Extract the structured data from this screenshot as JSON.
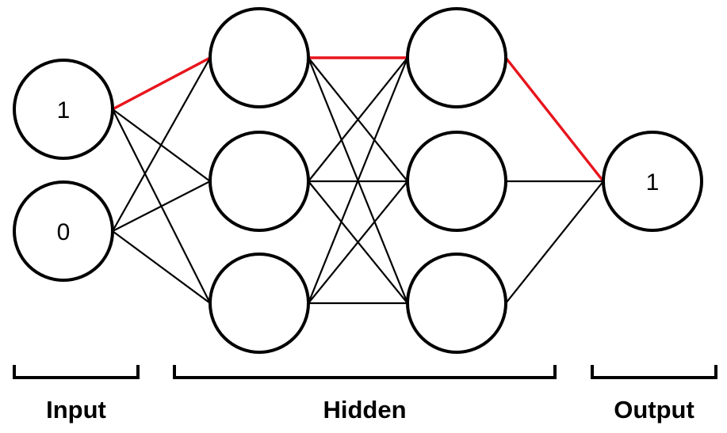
{
  "diagram": {
    "highlight_color": "#e8141c",
    "edge_color": "#000000",
    "layers": [
      {
        "id": "input",
        "group": "Input",
        "values": [
          "1",
          "0"
        ]
      },
      {
        "id": "hidden1",
        "group": "Hidden",
        "values": [
          "",
          "",
          ""
        ]
      },
      {
        "id": "hidden2",
        "group": "Hidden",
        "values": [
          "",
          "",
          ""
        ]
      },
      {
        "id": "output",
        "group": "Output",
        "values": [
          "1"
        ]
      }
    ],
    "groups": [
      {
        "id": "input",
        "label": "Input"
      },
      {
        "id": "hidden",
        "label": "Hidden"
      },
      {
        "id": "output",
        "label": "Output"
      }
    ],
    "highlighted_path": [
      {
        "layer": 0,
        "node": 0
      },
      {
        "layer": 1,
        "node": 0
      },
      {
        "layer": 2,
        "node": 0
      },
      {
        "layer": 3,
        "node": 0
      }
    ]
  }
}
